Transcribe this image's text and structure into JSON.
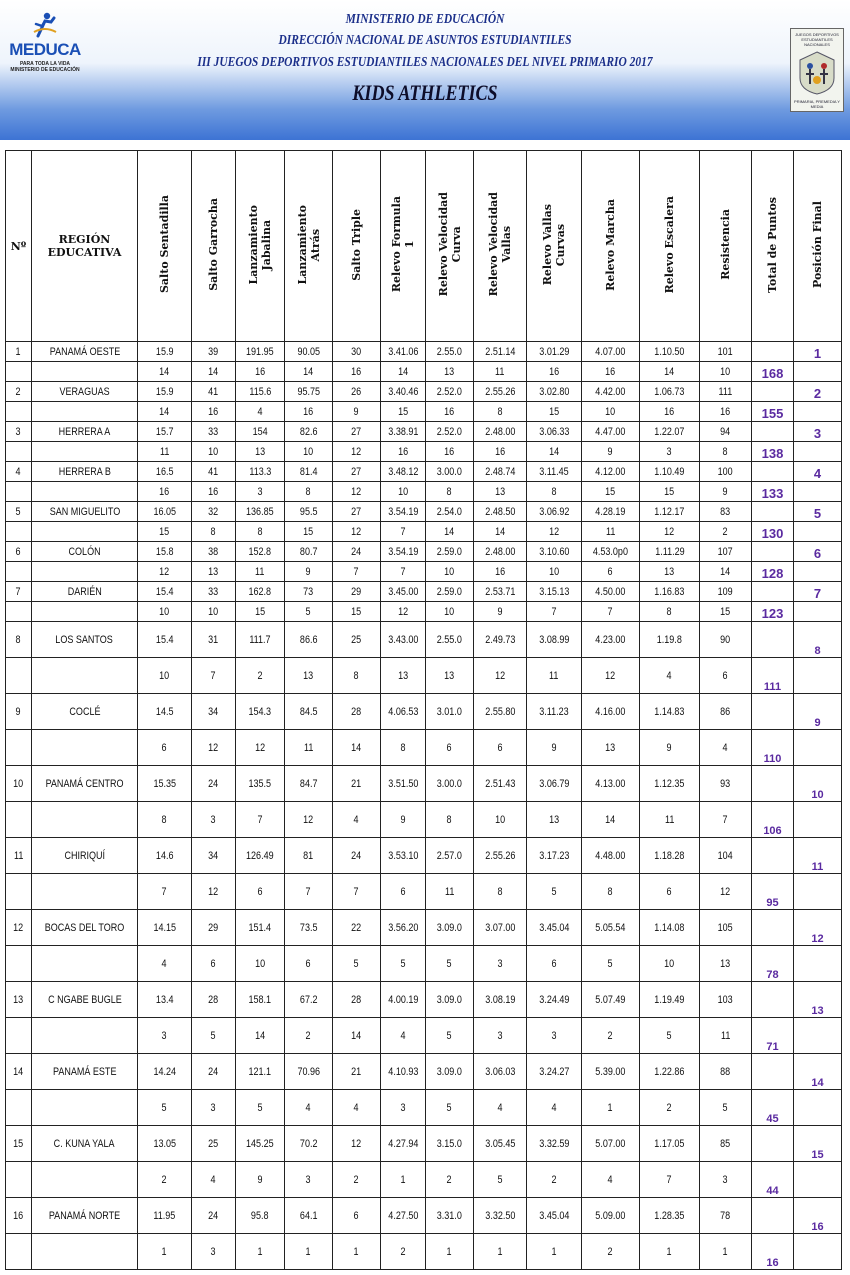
{
  "header": {
    "logo_left": {
      "word": "MEDUCA",
      "sub1": "PARA TODA LA VIDA",
      "sub2": "MINISTERIO DE EDUCACIÓN"
    },
    "logo_right": {
      "top": "JUEGOS DEPORTIVOS ESTUDIANTILES NACIONALES",
      "bottom": "PRIMARIA, PREMEDIA Y MEDIA"
    },
    "line1": "MINISTERIO DE EDUCACIÓN",
    "line2": "DIRECCIÓN NACIONAL DE ASUNTOS ESTUDIANTILES",
    "line3": "III JUEGOS DEPORTIVOS ESTUDIANTILES NACIONALES DEL NIVEL PRIMARIO 2017",
    "line4": "KIDS ATHLETICS"
  },
  "table": {
    "columns": [
      "Nº",
      "REGIÓN EDUCATIVA",
      "Salto Sentadilla",
      "Salto Garrocha",
      "Lanzamiento\nJabalina",
      "Lanzamiento\nAtrás",
      "Salto Triple",
      "Relevo  Formula\n1",
      "Relevo Velocidad\nCurva",
      "Relevo Velocidad\nVallas",
      "Relevo Vallas\nCurvas",
      "Relevo Marcha",
      "Relevo Escalera",
      "Resistencia",
      "Total de Puntos",
      "Posición Final"
    ],
    "rows": [
      {
        "no": "1",
        "region": "PANAMÁ OESTE",
        "marks": [
          "15.9",
          "39",
          "191.95",
          "90.05",
          "30",
          "3.41.06",
          "2.55.0",
          "2.51.14",
          "3.01.29",
          "4.07.00",
          "1.10.50",
          "101"
        ],
        "points": [
          "14",
          "14",
          "16",
          "14",
          "16",
          "14",
          "13",
          "11",
          "16",
          "16",
          "14",
          "10"
        ],
        "total": "168",
        "position": "1"
      },
      {
        "no": "2",
        "region": "VERAGUAS",
        "marks": [
          "15.9",
          "41",
          "115.6",
          "95.75",
          "26",
          "3.40.46",
          "2.52.0",
          "2.55.26",
          "3.02.80",
          "4.42.00",
          "1.06.73",
          "111"
        ],
        "points": [
          "14",
          "16",
          "4",
          "16",
          "9",
          "15",
          "16",
          "8",
          "15",
          "10",
          "16",
          "16"
        ],
        "total": "155",
        "position": "2"
      },
      {
        "no": "3",
        "region": "HERRERA A",
        "marks": [
          "15.7",
          "33",
          "154",
          "82.6",
          "27",
          "3.38.91",
          "2.52.0",
          "2.48.00",
          "3.06.33",
          "4.47.00",
          "1.22.07",
          "94"
        ],
        "points": [
          "11",
          "10",
          "13",
          "10",
          "12",
          "16",
          "16",
          "16",
          "14",
          "9",
          "3",
          "8"
        ],
        "total": "138",
        "position": "3"
      },
      {
        "no": "4",
        "region": "HERRERA B",
        "marks": [
          "16.5",
          "41",
          "113.3",
          "81.4",
          "27",
          "3.48.12",
          "3.00.0",
          "2.48.74",
          "3.11.45",
          "4.12.00",
          "1.10.49",
          "100"
        ],
        "points": [
          "16",
          "16",
          "3",
          "8",
          "12",
          "10",
          "8",
          "13",
          "8",
          "15",
          "15",
          "9"
        ],
        "total": "133",
        "position": "4"
      },
      {
        "no": "5",
        "region": "SAN MIGUELITO",
        "marks": [
          "16.05",
          "32",
          "136.85",
          "95.5",
          "27",
          "3.54.19",
          "2.54.0",
          "2.48.50",
          "3.06.92",
          "4.28.19",
          "1.12.17",
          "83"
        ],
        "points": [
          "15",
          "8",
          "8",
          "15",
          "12",
          "7",
          "14",
          "14",
          "12",
          "11",
          "12",
          "2"
        ],
        "total": "130",
        "position": "5"
      },
      {
        "no": "6",
        "region": "COLÓN",
        "marks": [
          "15.8",
          "38",
          "152.8",
          "80.7",
          "24",
          "3.54.19",
          "2.59.0",
          "2.48.00",
          "3.10.60",
          "4.53.0p0",
          "1.11.29",
          "107"
        ],
        "points": [
          "12",
          "13",
          "11",
          "9",
          "7",
          "7",
          "10",
          "16",
          "10",
          "6",
          "13",
          "14"
        ],
        "total": "128",
        "position": "6"
      },
      {
        "no": "7",
        "region": "DARIÉN",
        "marks": [
          "15.4",
          "33",
          "162.8",
          "73",
          "29",
          "3.45.00",
          "2.59.0",
          "2.53.71",
          "3.15.13",
          "4.50.00",
          "1.16.83",
          "109"
        ],
        "points": [
          "10",
          "10",
          "15",
          "5",
          "15",
          "12",
          "10",
          "9",
          "7",
          "7",
          "8",
          "15"
        ],
        "total": "123",
        "position": "7"
      },
      {
        "no": "8",
        "region": "LOS SANTOS",
        "marks": [
          "15.4",
          "31",
          "111.7",
          "86.6",
          "25",
          "3.43.00",
          "2.55.0",
          "2.49.73",
          "3.08.99",
          "4.23.00",
          "1.19.8",
          "90"
        ],
        "points": [
          "10",
          "7",
          "2",
          "13",
          "8",
          "13",
          "13",
          "12",
          "11",
          "12",
          "4",
          "6"
        ],
        "total": "111",
        "position": "8"
      },
      {
        "no": "9",
        "region": "COCLÉ",
        "marks": [
          "14.5",
          "34",
          "154.3",
          "84.5",
          "28",
          "4.06.53",
          "3.01.0",
          "2.55.80",
          "3.11.23",
          "4.16.00",
          "1.14.83",
          "86"
        ],
        "points": [
          "6",
          "12",
          "12",
          "11",
          "14",
          "8",
          "6",
          "6",
          "9",
          "13",
          "9",
          "4"
        ],
        "total": "110",
        "position": "9"
      },
      {
        "no": "10",
        "region": "PANAMÁ CENTRO",
        "marks": [
          "15.35",
          "24",
          "135.5",
          "84.7",
          "21",
          "3.51.50",
          "3.00.0",
          "2.51.43",
          "3.06.79",
          "4.13.00",
          "1.12.35",
          "93"
        ],
        "points": [
          "8",
          "3",
          "7",
          "12",
          "4",
          "9",
          "8",
          "10",
          "13",
          "14",
          "11",
          "7"
        ],
        "total": "106",
        "position": "10"
      },
      {
        "no": "11",
        "region": "CHIRIQUÍ",
        "marks": [
          "14.6",
          "34",
          "126.49",
          "81",
          "24",
          "3.53.10",
          "2.57.0",
          "2.55.26",
          "3.17.23",
          "4.48.00",
          "1.18.28",
          "104"
        ],
        "points": [
          "7",
          "12",
          "6",
          "7",
          "7",
          "6",
          "11",
          "8",
          "5",
          "8",
          "6",
          "12"
        ],
        "total": "95",
        "position": "11"
      },
      {
        "no": "12",
        "region": "BOCAS DEL TORO",
        "marks": [
          "14.15",
          "29",
          "151.4",
          "73.5",
          "22",
          "3.56.20",
          "3.09.0",
          "3.07.00",
          "3.45.04",
          "5.05.54",
          "1.14.08",
          "105"
        ],
        "points": [
          "4",
          "6",
          "10",
          "6",
          "5",
          "5",
          "5",
          "3",
          "6",
          "5",
          "10",
          "13"
        ],
        "total": "78",
        "position": "12"
      },
      {
        "no": "13",
        "region": "C NGABE BUGLE",
        "marks": [
          "13.4",
          "28",
          "158.1",
          "67.2",
          "28",
          "4.00.19",
          "3.09.0",
          "3.08.19",
          "3.24.49",
          "5.07.49",
          "1.19.49",
          "103"
        ],
        "points": [
          "3",
          "5",
          "14",
          "2",
          "14",
          "4",
          "5",
          "3",
          "3",
          "2",
          "5",
          "11"
        ],
        "total": "71",
        "position": "13"
      },
      {
        "no": "14",
        "region": "PANAMÁ ESTE",
        "marks": [
          "14.24",
          "24",
          "121.1",
          "70.96",
          "21",
          "4.10.93",
          "3.09.0",
          "3.06.03",
          "3.24.27",
          "5.39.00",
          "1.22.86",
          "88"
        ],
        "points": [
          "5",
          "3",
          "5",
          "4",
          "4",
          "3",
          "5",
          "4",
          "4",
          "1",
          "2",
          "5"
        ],
        "total": "45",
        "position": "14"
      },
      {
        "no": "15",
        "region": "C. KUNA YALA",
        "marks": [
          "13.05",
          "25",
          "145.25",
          "70.2",
          "12",
          "4.27.94",
          "3.15.0",
          "3.05.45",
          "3.32.59",
          "5.07.00",
          "1.17.05",
          "85"
        ],
        "points": [
          "2",
          "4",
          "9",
          "3",
          "2",
          "1",
          "2",
          "5",
          "2",
          "4",
          "7",
          "3"
        ],
        "total": "44",
        "position": "15"
      },
      {
        "no": "16",
        "region": "PANAMÁ NORTE",
        "marks": [
          "11.95",
          "24",
          "95.8",
          "64.1",
          "6",
          "4.27.50",
          "3.31.0",
          "3.32.50",
          "3.45.04",
          "5.09.00",
          "1.28.35",
          "78"
        ],
        "points": [
          "1",
          "3",
          "1",
          "1",
          "1",
          "2",
          "1",
          "1",
          "1",
          "2",
          "1",
          "1"
        ],
        "total": "16",
        "position": "16"
      }
    ]
  }
}
